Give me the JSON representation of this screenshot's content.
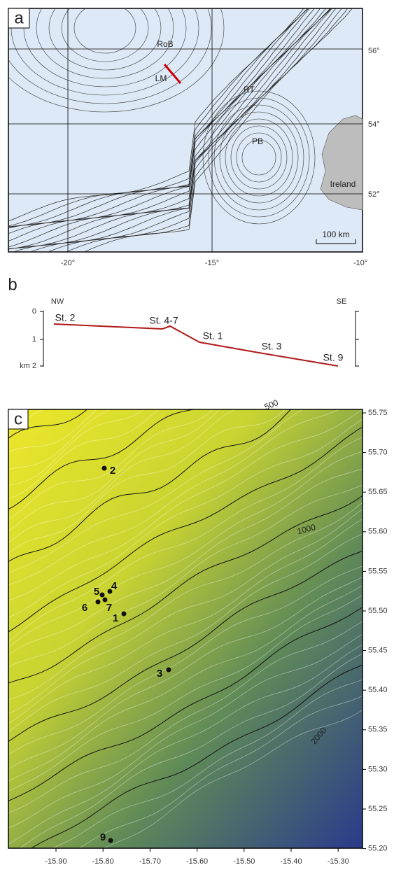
{
  "panel_a": {
    "label": "a",
    "places": [
      "RoB",
      "LM",
      "RT",
      "PB",
      "Ireland"
    ],
    "scale_bar": "100 km",
    "lat_labels": [
      "56°",
      "54°",
      "52°"
    ],
    "lon_labels": [
      "-20°",
      "-15°",
      "-10°"
    ]
  },
  "panel_b": {
    "label": "b",
    "left_end": "NW",
    "right_end": "SE",
    "depth_labels": [
      "0",
      "1",
      "km 2"
    ],
    "stations": [
      "St. 2",
      "St. 4-7",
      "St. 1",
      "St. 3",
      "St. 9"
    ]
  },
  "panel_c": {
    "label": "c",
    "contour_labels": [
      "500",
      "1000",
      "2000"
    ],
    "stations": [
      "2",
      "5",
      "4",
      "6",
      "7",
      "1",
      "3",
      "9"
    ],
    "lat_labels": [
      "55.75",
      "55.70",
      "55.65",
      "55.60",
      "55.55",
      "55.50",
      "55.45",
      "55.40",
      "55.35",
      "55.30",
      "55.25",
      "55.20"
    ],
    "lon_labels": [
      "-15.90",
      "-15.80",
      "-15.70",
      "-15.60",
      "-15.50",
      "-15.40",
      "-15.30"
    ]
  }
}
